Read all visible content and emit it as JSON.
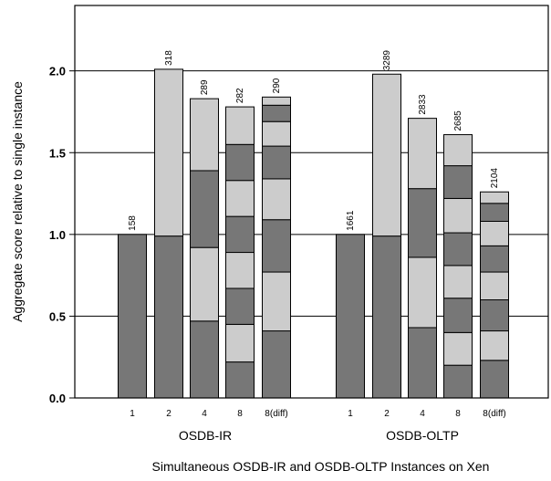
{
  "chart_data": {
    "type": "bar",
    "subtype": "stacked",
    "xlabel": "Simultaneous OSDB-IR and OSDB-OLTP Instances on Xen",
    "ylabel": "Aggregate score relative to single instance",
    "ylim": [
      0,
      2.4
    ],
    "yticks": [
      "0.0",
      "0.5",
      "1.0",
      "1.5",
      "2.0"
    ],
    "ytick_values": [
      0,
      0.5,
      1.0,
      1.5,
      2.0
    ],
    "grid": true,
    "colors": {
      "dark": "#777777",
      "light": "#cccccc",
      "border": "#000000"
    },
    "groups": [
      {
        "name": "OSDB-IR",
        "bars": [
          {
            "category": "1",
            "label": "158",
            "segments": [
              1.0
            ]
          },
          {
            "category": "2",
            "label": "318",
            "segments": [
              0.99,
              1.02
            ]
          },
          {
            "category": "4",
            "label": "289",
            "segments": [
              0.47,
              0.45,
              0.47,
              0.44
            ]
          },
          {
            "category": "8",
            "label": "282",
            "segments": [
              0.22,
              0.23,
              0.22,
              0.22,
              0.22,
              0.22,
              0.22,
              0.23
            ]
          },
          {
            "category": "8(diff)",
            "label": "290",
            "segments": [
              0.41,
              0.36,
              0.32,
              0.25,
              0.2,
              0.15,
              0.1,
              0.05
            ]
          }
        ]
      },
      {
        "name": "OSDB-OLTP",
        "bars": [
          {
            "category": "1",
            "label": "1661",
            "segments": [
              1.0
            ]
          },
          {
            "category": "2",
            "label": "3289",
            "segments": [
              0.99,
              0.99
            ]
          },
          {
            "category": "4",
            "label": "2833",
            "segments": [
              0.43,
              0.43,
              0.42,
              0.43
            ]
          },
          {
            "category": "8",
            "label": "2685",
            "segments": [
              0.2,
              0.2,
              0.21,
              0.2,
              0.2,
              0.21,
              0.2,
              0.19
            ]
          },
          {
            "category": "8(diff)",
            "label": "2104",
            "segments": [
              0.23,
              0.18,
              0.19,
              0.17,
              0.16,
              0.15,
              0.11,
              0.07
            ]
          }
        ]
      }
    ]
  }
}
